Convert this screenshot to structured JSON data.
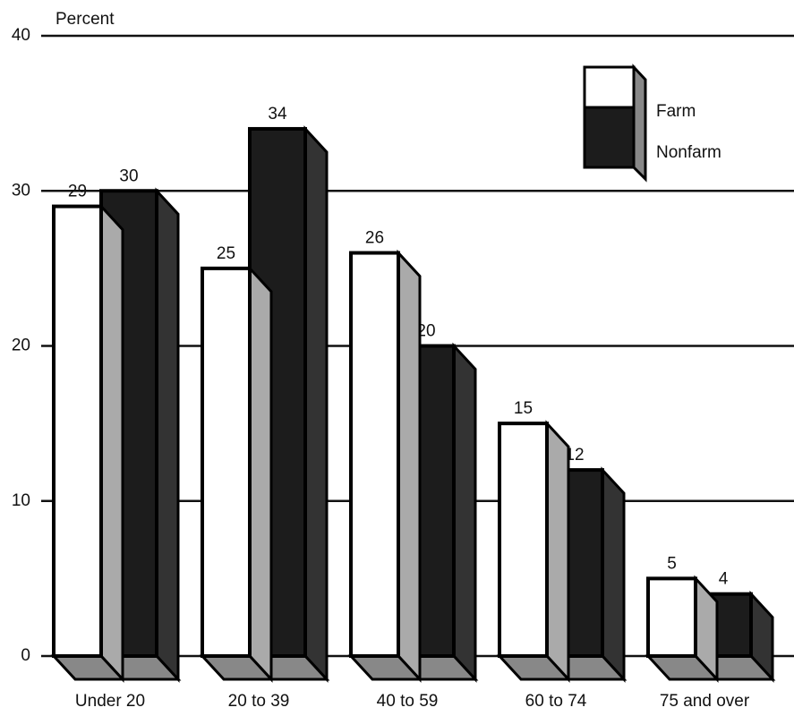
{
  "chart_data": {
    "type": "bar",
    "y_label": "Percent",
    "categories": [
      "Under 20",
      "20 to 39",
      "40 to 59",
      "60 to 74",
      "75 and over"
    ],
    "series": [
      {
        "name": "Farm",
        "color": "#ffffff",
        "values": [
          29,
          25,
          26,
          15,
          5
        ]
      },
      {
        "name": "Nonfarm",
        "color": "#1c1c1c",
        "values": [
          30,
          34,
          20,
          12,
          4
        ]
      }
    ],
    "ylim": [
      0,
      40
    ],
    "yticks": [
      0,
      10,
      20,
      30,
      40
    ],
    "grid": true,
    "legend": "upper right"
  }
}
